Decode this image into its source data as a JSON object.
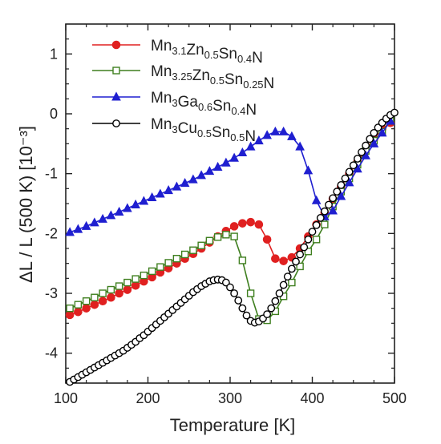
{
  "chart_data": {
    "type": "scatter",
    "xlabel": "Temperature [K]",
    "ylabel": "ΔL / L (500 K) [10⁻³]",
    "xlim": [
      100,
      500
    ],
    "ylim": [
      -4.5,
      1.5
    ],
    "xticks": [
      "100",
      "200",
      "300",
      "400",
      "500"
    ],
    "yticks": [
      "1",
      "0",
      "-1",
      "-2",
      "-3",
      "-4"
    ],
    "legend_position": "top-left",
    "grid": false,
    "series": [
      {
        "name": "Mn3.1Zn0.5Sn0.4N",
        "color": "#e02020",
        "marker": "circle-filled",
        "x": [
          105,
          115,
          125,
          135,
          145,
          155,
          165,
          175,
          185,
          195,
          205,
          215,
          225,
          235,
          245,
          255,
          265,
          275,
          285,
          295,
          305,
          315,
          325,
          335,
          345,
          355,
          365,
          375,
          385,
          395,
          405,
          415,
          425,
          435,
          445,
          455,
          465,
          475,
          485,
          495
        ],
        "y": [
          -3.36,
          -3.31,
          -3.25,
          -3.19,
          -3.13,
          -3.07,
          -3.0,
          -2.94,
          -2.87,
          -2.8,
          -2.73,
          -2.65,
          -2.58,
          -2.5,
          -2.42,
          -2.34,
          -2.25,
          -2.15,
          -2.05,
          -1.96,
          -1.88,
          -1.83,
          -1.81,
          -1.85,
          -2.1,
          -2.42,
          -2.46,
          -2.4,
          -2.25,
          -2.05,
          -1.85,
          -1.65,
          -1.42,
          -1.22,
          -1.0,
          -0.8,
          -0.6,
          -0.42,
          -0.25,
          -0.15
        ]
      },
      {
        "name": "Mn3.25Zn0.5Sn0.25N",
        "color": "#3f7f1f",
        "marker": "square-open",
        "x": [
          105,
          115,
          125,
          135,
          145,
          155,
          165,
          175,
          185,
          195,
          205,
          215,
          225,
          235,
          245,
          255,
          265,
          275,
          285,
          295,
          305,
          315,
          325,
          335,
          345,
          355,
          365,
          375,
          385,
          395,
          405,
          415,
          425,
          435,
          445,
          455,
          465,
          475,
          485,
          495
        ],
        "y": [
          -3.25,
          -3.19,
          -3.13,
          -3.07,
          -3.0,
          -2.94,
          -2.88,
          -2.82,
          -2.76,
          -2.7,
          -2.63,
          -2.56,
          -2.49,
          -2.42,
          -2.35,
          -2.28,
          -2.2,
          -2.12,
          -2.06,
          -2.02,
          -2.05,
          -2.45,
          -3.0,
          -3.43,
          -3.45,
          -3.3,
          -3.05,
          -2.82,
          -2.55,
          -2.3,
          -2.1,
          -1.85,
          -1.55,
          -1.3,
          -1.08,
          -0.85,
          -0.62,
          -0.45,
          -0.3,
          -0.12
        ]
      },
      {
        "name": "Mn3Ga0.6Sn0.4N",
        "color": "#1f1fd0",
        "marker": "triangle-filled",
        "x": [
          105,
          115,
          125,
          135,
          145,
          155,
          165,
          175,
          185,
          195,
          205,
          215,
          225,
          235,
          245,
          255,
          265,
          275,
          285,
          295,
          305,
          315,
          325,
          335,
          345,
          355,
          365,
          375,
          385,
          395,
          405,
          415,
          425,
          435,
          445,
          455,
          465,
          475,
          485,
          495
        ],
        "y": [
          -1.98,
          -1.93,
          -1.88,
          -1.82,
          -1.76,
          -1.7,
          -1.64,
          -1.58,
          -1.52,
          -1.46,
          -1.4,
          -1.34,
          -1.28,
          -1.22,
          -1.16,
          -1.1,
          -1.03,
          -0.96,
          -0.89,
          -0.82,
          -0.74,
          -0.65,
          -0.55,
          -0.45,
          -0.36,
          -0.3,
          -0.3,
          -0.38,
          -0.55,
          -0.95,
          -1.45,
          -1.72,
          -1.62,
          -1.38,
          -1.15,
          -0.92,
          -0.7,
          -0.5,
          -0.32,
          -0.12
        ]
      },
      {
        "name": "Mn3Cu0.5Sn0.5N",
        "color": "#000000",
        "marker": "circle-open",
        "x": [
          105,
          110,
          115,
          120,
          125,
          130,
          135,
          140,
          145,
          150,
          155,
          160,
          165,
          170,
          175,
          180,
          185,
          190,
          195,
          200,
          205,
          210,
          215,
          220,
          225,
          230,
          235,
          240,
          245,
          250,
          255,
          260,
          265,
          270,
          275,
          280,
          285,
          290,
          295,
          300,
          305,
          310,
          315,
          320,
          325,
          330,
          335,
          340,
          345,
          350,
          355,
          360,
          365,
          370,
          375,
          380,
          385,
          390,
          395,
          400,
          405,
          410,
          415,
          420,
          425,
          430,
          435,
          440,
          445,
          450,
          455,
          460,
          465,
          470,
          475,
          480,
          485,
          490,
          495,
          500
        ],
        "y": [
          -4.48,
          -4.44,
          -4.4,
          -4.36,
          -4.32,
          -4.28,
          -4.24,
          -4.2,
          -4.16,
          -4.12,
          -4.08,
          -4.04,
          -4.0,
          -3.96,
          -3.91,
          -3.86,
          -3.81,
          -3.75,
          -3.7,
          -3.64,
          -3.58,
          -3.52,
          -3.46,
          -3.4,
          -3.34,
          -3.28,
          -3.22,
          -3.16,
          -3.1,
          -3.04,
          -2.98,
          -2.93,
          -2.88,
          -2.84,
          -2.8,
          -2.78,
          -2.77,
          -2.78,
          -2.82,
          -2.9,
          -3.0,
          -3.12,
          -3.25,
          -3.37,
          -3.46,
          -3.49,
          -3.47,
          -3.42,
          -3.35,
          -3.25,
          -3.13,
          -3.0,
          -2.86,
          -2.72,
          -2.59,
          -2.47,
          -2.35,
          -2.23,
          -2.1,
          -1.97,
          -1.86,
          -1.74,
          -1.63,
          -1.52,
          -1.41,
          -1.3,
          -1.19,
          -1.08,
          -0.97,
          -0.86,
          -0.75,
          -0.64,
          -0.53,
          -0.42,
          -0.32,
          -0.23,
          -0.15,
          -0.08,
          -0.02,
          0.02
        ]
      }
    ]
  }
}
